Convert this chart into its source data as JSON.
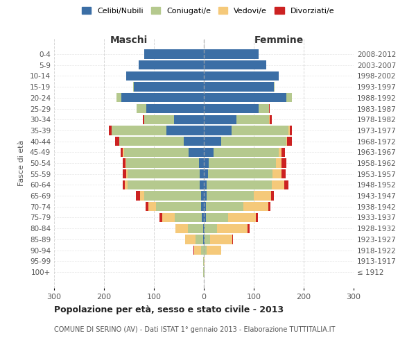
{
  "age_groups": [
    "100+",
    "95-99",
    "90-94",
    "85-89",
    "80-84",
    "75-79",
    "70-74",
    "65-69",
    "60-64",
    "55-59",
    "50-54",
    "45-49",
    "40-44",
    "35-39",
    "30-34",
    "25-29",
    "20-24",
    "15-19",
    "10-14",
    "5-9",
    "0-4"
  ],
  "birth_years": [
    "≤ 1912",
    "1913-1917",
    "1918-1922",
    "1923-1927",
    "1928-1932",
    "1933-1937",
    "1938-1942",
    "1943-1947",
    "1948-1952",
    "1953-1957",
    "1958-1962",
    "1963-1967",
    "1968-1972",
    "1973-1977",
    "1978-1982",
    "1983-1987",
    "1988-1992",
    "1993-1997",
    "1998-2002",
    "2003-2007",
    "2008-2012"
  ],
  "maschi": {
    "celibi": [
      0,
      0,
      0,
      2,
      2,
      4,
      6,
      5,
      8,
      8,
      10,
      30,
      40,
      75,
      60,
      115,
      165,
      140,
      155,
      130,
      120
    ],
    "coniugati": [
      1,
      1,
      5,
      15,
      30,
      55,
      90,
      115,
      145,
      145,
      145,
      130,
      130,
      110,
      60,
      20,
      10,
      2,
      0,
      0,
      0
    ],
    "vedovi": [
      0,
      0,
      15,
      20,
      25,
      25,
      15,
      8,
      5,
      2,
      2,
      2,
      0,
      0,
      0,
      0,
      0,
      0,
      0,
      0,
      0
    ],
    "divorziati": [
      0,
      0,
      1,
      0,
      0,
      5,
      5,
      8,
      5,
      8,
      5,
      5,
      8,
      5,
      2,
      0,
      0,
      0,
      0,
      0,
      0
    ]
  },
  "femmine": {
    "nubili": [
      0,
      0,
      0,
      2,
      2,
      4,
      4,
      5,
      6,
      8,
      10,
      20,
      35,
      55,
      65,
      110,
      165,
      140,
      150,
      125,
      110
    ],
    "coniugate": [
      1,
      0,
      5,
      10,
      25,
      45,
      75,
      95,
      130,
      130,
      135,
      130,
      130,
      115,
      65,
      20,
      12,
      2,
      0,
      0,
      0
    ],
    "vedove": [
      0,
      2,
      30,
      45,
      60,
      55,
      50,
      35,
      25,
      18,
      10,
      5,
      2,
      2,
      2,
      0,
      0,
      0,
      0,
      0,
      0
    ],
    "divorziate": [
      0,
      0,
      0,
      2,
      5,
      5,
      5,
      5,
      8,
      8,
      10,
      8,
      10,
      5,
      4,
      2,
      0,
      0,
      0,
      0,
      0
    ]
  },
  "colors": {
    "celibi": "#3B6EA5",
    "coniugati": "#B5C98E",
    "vedovi": "#F5C97A",
    "divorziati": "#CC2222"
  },
  "xlim": 300,
  "title": "Popolazione per età, sesso e stato civile - 2013",
  "subtitle": "COMUNE DI SERINO (AV) - Dati ISTAT 1° gennaio 2013 - Elaborazione TUTTITALIA.IT",
  "ylabel_left": "Fasce di età",
  "xlabel_left": "Maschi",
  "xlabel_right": "Femmine",
  "legend_labels": [
    "Celibi/Nubili",
    "Coniugati/e",
    "Vedovi/e",
    "Divorziati/e"
  ],
  "background_color": "#ffffff",
  "grid_color": "#cccccc"
}
